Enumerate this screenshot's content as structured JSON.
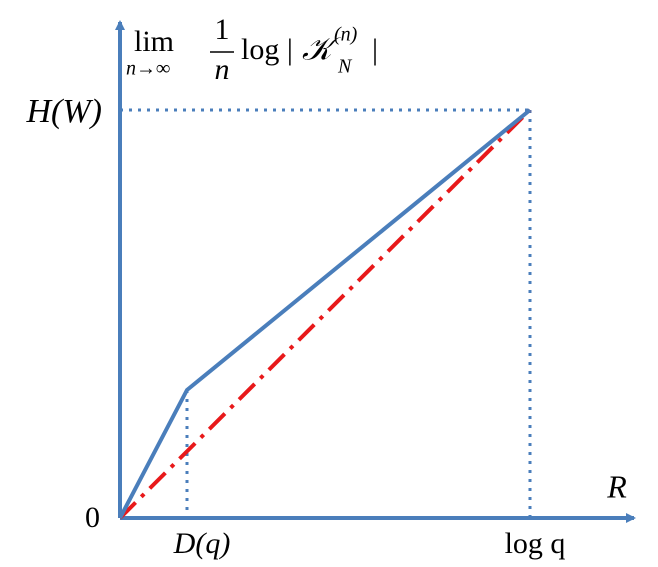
{
  "y_axis_label": {
    "lim": "lim",
    "limit": "n→∞",
    "numerator": "1",
    "denominator": "n",
    "log": "log |",
    "set": "𝒦",
    "superscript": "(n)",
    "subscript": "N",
    "close": "|"
  },
  "y_marks": {
    "top": "H(W)",
    "origin": "0"
  },
  "x_axis_label": "R",
  "x_marks": {
    "kink": "D(q)",
    "end": "log q"
  }
}
